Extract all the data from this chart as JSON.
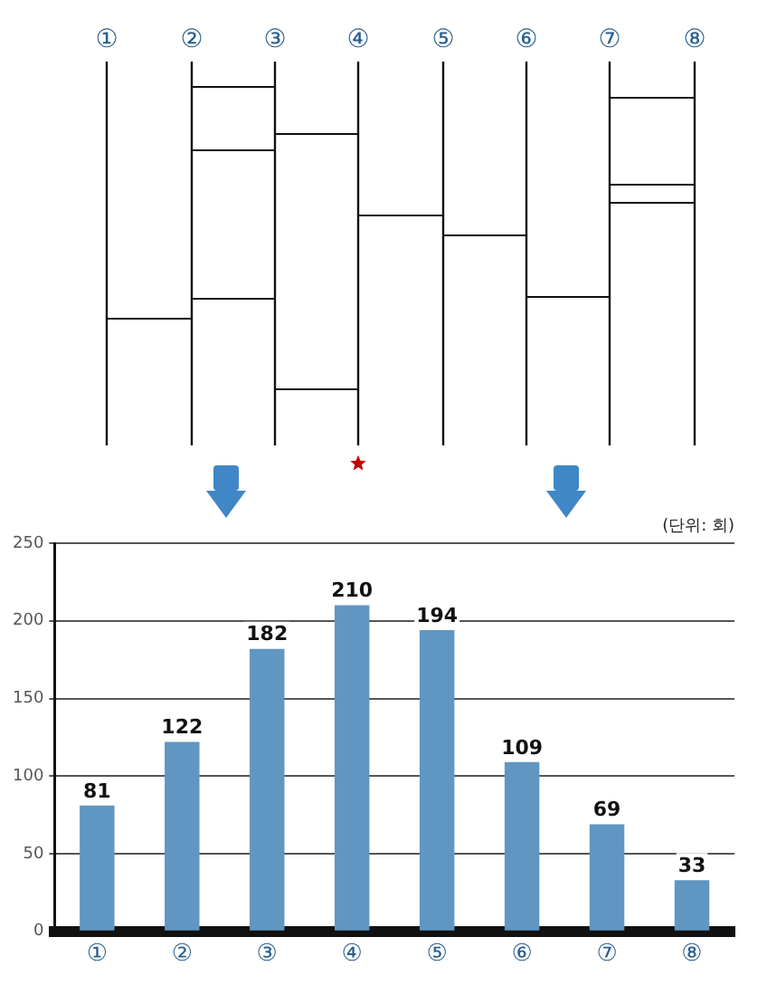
{
  "chart_data": {
    "type": "bar",
    "categories": [
      "①",
      "②",
      "③",
      "④",
      "⑤",
      "⑥",
      "⑦",
      "⑧"
    ],
    "values": [
      81,
      122,
      182,
      210,
      194,
      109,
      69,
      33
    ],
    "color": "#6096c2",
    "ylim": [
      0,
      250
    ],
    "yticks": [
      0,
      50,
      100,
      150,
      200,
      250
    ],
    "grid": "y",
    "data_labels": true,
    "annotations": [
      "(단위: 회)"
    ]
  }
}
